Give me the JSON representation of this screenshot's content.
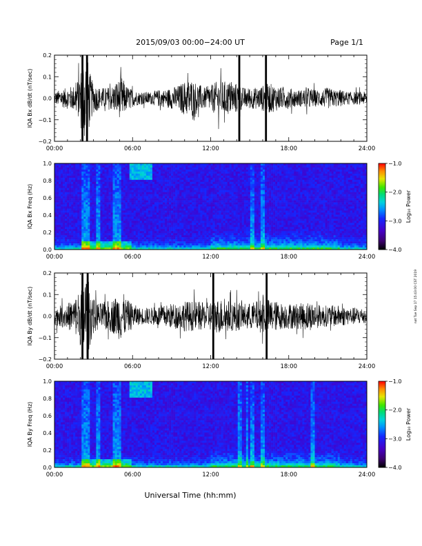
{
  "header": {
    "title": "2015/09/03  00:00−24:00 UT",
    "page": "Page 1/1"
  },
  "footer": {
    "xlabel": "Universal Time (hh:mm)",
    "sidestamp": "nat Tue Sep 17 15:43:00 CST 2019"
  },
  "chart_data": [
    {
      "type": "line",
      "panel": "Bx waveform",
      "ylabel": "IQA Bx dB/dt (nT/sec)",
      "xlim": [
        0,
        24
      ],
      "ylim": [
        -0.2,
        0.2
      ],
      "xticks": [
        "00:00",
        "06:00",
        "12:00",
        "18:00",
        "24:00"
      ],
      "yticks": [
        "0.2",
        "0.1",
        "0.0",
        "−0.1",
        "−0.2"
      ],
      "envelope": {
        "x": [
          0,
          0.5,
          1,
          1.5,
          1.9,
          2.2,
          2.5,
          2.8,
          3,
          3.5,
          4,
          4.5,
          4.8,
          5.2,
          5.5,
          6,
          6.5,
          7,
          7.5,
          8,
          8.5,
          9,
          9.5,
          10,
          10.5,
          11,
          11.5,
          12,
          12.5,
          13,
          13.5,
          14,
          14.5,
          15,
          15.5,
          16,
          16.5,
          17,
          17.5,
          18,
          18.5,
          19,
          19.5,
          20,
          20.5,
          21,
          21.5,
          22,
          22.5,
          23,
          23.5,
          24
        ],
        "amp": [
          0.03,
          0.04,
          0.05,
          0.06,
          0.1,
          0.2,
          0.2,
          0.1,
          0.07,
          0.05,
          0.05,
          0.06,
          0.08,
          0.1,
          0.06,
          0.04,
          0.03,
          0.03,
          0.03,
          0.04,
          0.04,
          0.05,
          0.06,
          0.08,
          0.09,
          0.07,
          0.05,
          0.06,
          0.08,
          0.08,
          0.08,
          0.07,
          0.05,
          0.05,
          0.05,
          0.06,
          0.07,
          0.06,
          0.05,
          0.05,
          0.04,
          0.04,
          0.05,
          0.04,
          0.04,
          0.05,
          0.04,
          0.04,
          0.03,
          0.03,
          0.03,
          0.03
        ]
      },
      "spikes": [
        {
          "x": 2.15,
          "amp": 0.2
        },
        {
          "x": 2.5,
          "amp": 0.2
        },
        {
          "x": 14.2,
          "amp": 0.2
        },
        {
          "x": 16.25,
          "amp": 0.2
        }
      ]
    },
    {
      "type": "heatmap",
      "panel": "Bx spectrogram",
      "ylabel": "IQA Bx Freq (Hz)",
      "xlim": [
        0,
        24
      ],
      "ylim": [
        0,
        1.0
      ],
      "xticks": [
        "00:00",
        "06:00",
        "12:00",
        "18:00",
        "24:00"
      ],
      "yticks": [
        "1.0",
        "0.8",
        "0.6",
        "0.4",
        "0.2",
        "0.0"
      ],
      "colorbar": {
        "label": "Log₁₀ Power",
        "range": [
          -4.0,
          -1.0
        ],
        "ticks": [
          "−1.0",
          "−2.0",
          "−3.0",
          "−4.0"
        ]
      },
      "vertical_lines": [
        2.3,
        2.6,
        3.3,
        4.6,
        5.0,
        15.2,
        16.0
      ]
    },
    {
      "type": "line",
      "panel": "By waveform",
      "ylabel": "IQA By dB/dt (nT/sec)",
      "xlim": [
        0,
        24
      ],
      "ylim": [
        -0.2,
        0.2
      ],
      "xticks": [
        "00:00",
        "06:00",
        "12:00",
        "18:00",
        "24:00"
      ],
      "yticks": [
        "0.2",
        "0.1",
        "0.0",
        "−0.1",
        "−0.2"
      ],
      "envelope": {
        "x": [
          0,
          0.5,
          1,
          1.5,
          1.9,
          2.2,
          2.5,
          2.8,
          3,
          3.5,
          4,
          4.5,
          4.8,
          5.2,
          5.5,
          6,
          6.5,
          7,
          7.5,
          8,
          8.5,
          9,
          9.5,
          10,
          10.5,
          11,
          11.5,
          12,
          12.5,
          13,
          13.5,
          14,
          14.5,
          15,
          15.5,
          16,
          16.5,
          17,
          17.5,
          18,
          18.5,
          19,
          19.5,
          20,
          20.5,
          21,
          21.5,
          22,
          22.5,
          23,
          23.5,
          24
        ],
        "amp": [
          0.04,
          0.05,
          0.06,
          0.08,
          0.12,
          0.2,
          0.2,
          0.12,
          0.08,
          0.06,
          0.07,
          0.08,
          0.1,
          0.12,
          0.08,
          0.06,
          0.04,
          0.04,
          0.04,
          0.05,
          0.05,
          0.06,
          0.06,
          0.07,
          0.07,
          0.07,
          0.06,
          0.07,
          0.08,
          0.08,
          0.07,
          0.07,
          0.06,
          0.06,
          0.07,
          0.08,
          0.08,
          0.07,
          0.06,
          0.06,
          0.06,
          0.06,
          0.07,
          0.06,
          0.05,
          0.05,
          0.05,
          0.05,
          0.04,
          0.04,
          0.04,
          0.04
        ]
      },
      "spikes": [
        {
          "x": 2.15,
          "amp": 0.2
        },
        {
          "x": 2.55,
          "amp": 0.2
        },
        {
          "x": 12.2,
          "amp": 0.2
        },
        {
          "x": 16.3,
          "amp": 0.2
        }
      ]
    },
    {
      "type": "heatmap",
      "panel": "By spectrogram",
      "ylabel": "IQA By Freq (Hz)",
      "xlim": [
        0,
        24
      ],
      "ylim": [
        0,
        1.0
      ],
      "xticks": [
        "00:00",
        "06:00",
        "12:00",
        "18:00",
        "24:00"
      ],
      "yticks": [
        "1.0",
        "0.8",
        "0.6",
        "0.4",
        "0.2",
        "0.0"
      ],
      "colorbar": {
        "label": "Log₁₀ Power",
        "range": [
          -4.0,
          -1.0
        ],
        "ticks": [
          "−1.0",
          "−2.0",
          "−3.0",
          "−4.0"
        ]
      },
      "vertical_lines": [
        2.3,
        2.6,
        3.3,
        4.6,
        5.0,
        14.2,
        14.8,
        15.2,
        16.0,
        19.8
      ]
    }
  ]
}
